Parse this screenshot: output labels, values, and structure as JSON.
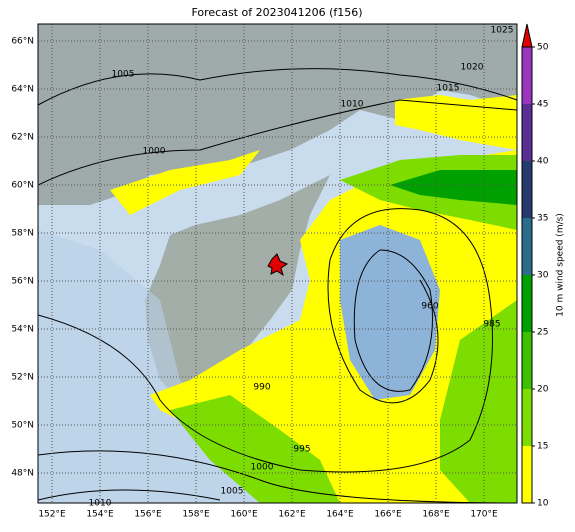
{
  "title": "Forecast of 2023041206 (f156)",
  "map": {
    "lat_labels": [
      "66°N",
      "64°N",
      "62°N",
      "60°N",
      "58°N",
      "56°N",
      "54°N",
      "52°N",
      "50°N",
      "48°N"
    ],
    "lon_labels": [
      "152°E",
      "154°E",
      "156°E",
      "158°E",
      "160°E",
      "162°E",
      "164°E",
      "166°E",
      "168°E",
      "170°E"
    ],
    "contour_labels": [
      "1025",
      "1020",
      "1015",
      "1010",
      "1005",
      "1000",
      "990",
      "995",
      "1000",
      "1005",
      "1010",
      "960",
      "985"
    ]
  },
  "colorbar": {
    "label": "10 m wind speed (m/s)",
    "lim": [
      10,
      50
    ],
    "ticks": [
      10,
      15,
      20,
      25,
      30,
      35,
      40,
      45,
      50
    ],
    "colors": [
      "#ffff00",
      "#7ddd00",
      "#3cc000",
      "#00a000",
      "#2b6e8c",
      "#243b6b",
      "#5a2f92",
      "#9a35c0"
    ],
    "extend_color": "#e00000"
  }
}
